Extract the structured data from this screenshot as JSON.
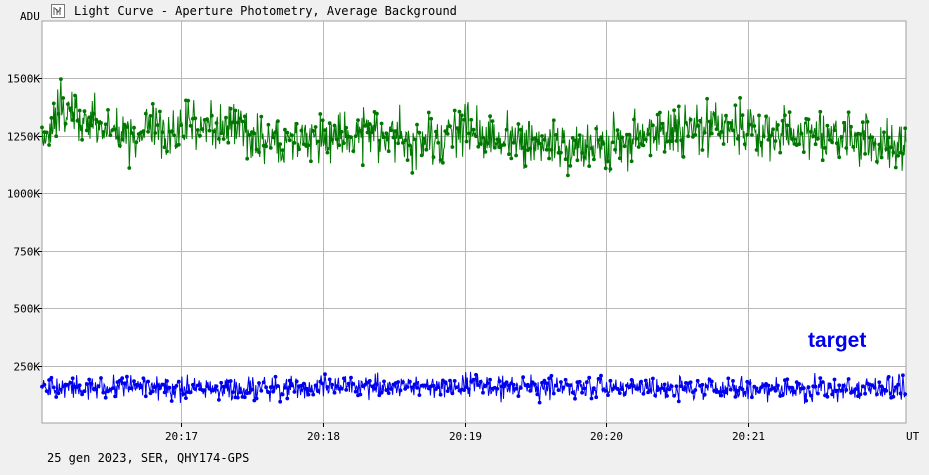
{
  "window": {
    "title": "Light Curve - Aperture Photometry, Average Background",
    "footer": "25 gen 2023, SER, QHY174-GPS",
    "icon": "chart-icon"
  },
  "chart_data": {
    "type": "line",
    "title": "Light Curve - Aperture Photometry, Average Background",
    "ylabel": "ADU",
    "xlabel": "UT",
    "xlim": [
      "20:16:01",
      "20:22:07"
    ],
    "ylim": [
      0,
      1750000
    ],
    "grid": true,
    "x_ticks": [
      "20:17",
      "20:18",
      "20:19",
      "20:20",
      "20:21"
    ],
    "y_ticks": [
      {
        "value": 250000,
        "label": "250K"
      },
      {
        "value": 500000,
        "label": "500K"
      },
      {
        "value": 750000,
        "label": "750K"
      },
      {
        "value": 1000000,
        "label": "1000K"
      },
      {
        "value": 1250000,
        "label": "1250K"
      },
      {
        "value": 1500000,
        "label": "1500K"
      }
    ],
    "series": [
      {
        "color": "#007800",
        "marker": "circle",
        "x": [
          "20:16:01",
          "20:16:10",
          "20:16:20",
          "20:16:30",
          "20:16:40",
          "20:16:50",
          "20:17:00",
          "20:17:10",
          "20:17:20",
          "20:17:30",
          "20:17:40",
          "20:17:50",
          "20:18:00",
          "20:18:10",
          "20:18:20",
          "20:18:30",
          "20:18:40",
          "20:18:50",
          "20:19:00",
          "20:19:10",
          "20:19:20",
          "20:19:30",
          "20:19:40",
          "20:19:50",
          "20:20:00",
          "20:20:10",
          "20:20:20",
          "20:20:30",
          "20:20:40",
          "20:20:50",
          "20:21:00",
          "20:21:10",
          "20:21:20",
          "20:21:30",
          "20:21:40",
          "20:21:50",
          "20:22:00",
          "20:22:07"
        ],
        "y": [
          1230000,
          1360000,
          1310000,
          1280000,
          1250000,
          1260000,
          1290000,
          1310000,
          1280000,
          1250000,
          1240000,
          1230000,
          1240000,
          1260000,
          1270000,
          1240000,
          1230000,
          1240000,
          1300000,
          1240000,
          1230000,
          1210000,
          1180000,
          1190000,
          1220000,
          1230000,
          1260000,
          1270000,
          1280000,
          1290000,
          1280000,
          1250000,
          1250000,
          1260000,
          1240000,
          1220000,
          1210000,
          1200000
        ],
        "spread": 130000
      },
      {
        "name": "target",
        "color": "#0000f0",
        "marker": "circle",
        "x": [
          "20:16:01",
          "20:16:30",
          "20:17:00",
          "20:17:30",
          "20:18:00",
          "20:18:30",
          "20:19:00",
          "20:19:30",
          "20:20:00",
          "20:20:30",
          "20:21:00",
          "20:21:30",
          "20:22:00",
          "20:22:07"
        ],
        "y": [
          155000,
          160000,
          158000,
          150000,
          155000,
          157000,
          160000,
          152000,
          150000,
          153000,
          150000,
          148000,
          155000,
          152000
        ],
        "spread": 60000
      }
    ]
  }
}
